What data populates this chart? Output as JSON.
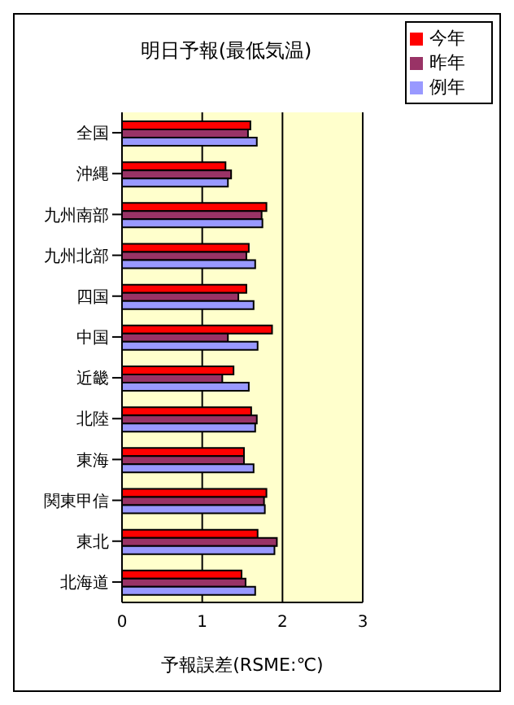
{
  "chart_data": {
    "type": "bar",
    "orientation": "horizontal",
    "title": "明日予報(最低気温)",
    "xlabel": "予報誤差(RSME:℃)",
    "categories": [
      "全国",
      "沖縄",
      "九州南部",
      "九州北部",
      "四国",
      "中国",
      "近畿",
      "北陸",
      "東海",
      "関東甲信",
      "東北",
      "北海道"
    ],
    "series": [
      {
        "name": "今年",
        "color": "#ff0000",
        "values": [
          1.6,
          1.29,
          1.8,
          1.58,
          1.55,
          1.87,
          1.39,
          1.61,
          1.52,
          1.8,
          1.69,
          1.49
        ]
      },
      {
        "name": "昨年",
        "color": "#993366",
        "values": [
          1.57,
          1.36,
          1.74,
          1.55,
          1.45,
          1.32,
          1.25,
          1.68,
          1.52,
          1.77,
          1.93,
          1.54
        ]
      },
      {
        "name": "例年",
        "color": "#9999ff",
        "values": [
          1.68,
          1.32,
          1.75,
          1.66,
          1.64,
          1.69,
          1.58,
          1.66,
          1.64,
          1.78,
          1.9,
          1.66
        ]
      }
    ],
    "xlim": [
      0,
      3
    ],
    "xticks": [
      0,
      1,
      2,
      3
    ],
    "grid": "x",
    "legend": "top right"
  }
}
